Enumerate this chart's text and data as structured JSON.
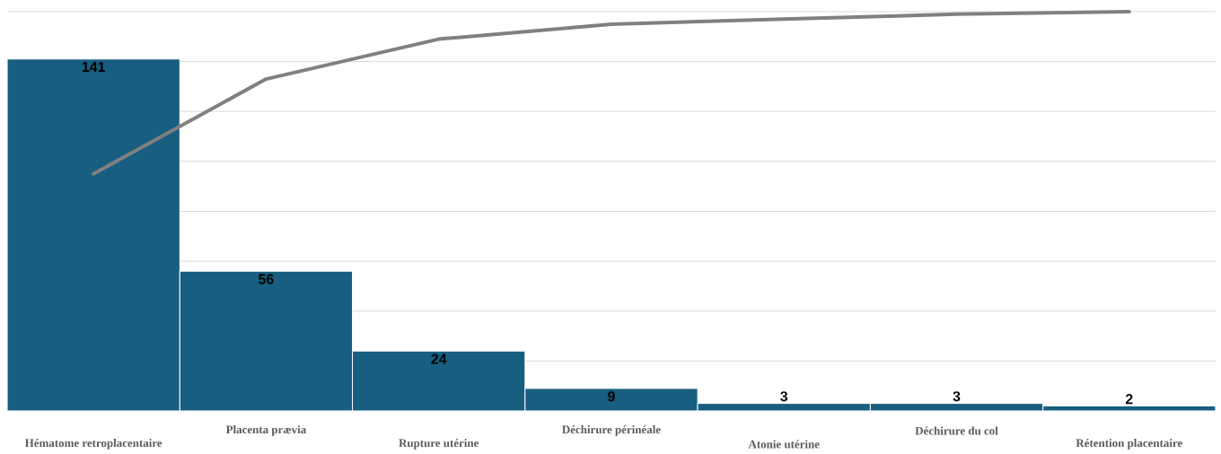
{
  "chart_data": {
    "type": "bar",
    "categories": [
      "Hématome retroplacentaire",
      "Placenta prævia",
      "Rupture utérine",
      "Déchirure périnéale",
      "Atonie utérine",
      "Déchirure du col",
      "Rétention placentaire"
    ],
    "series": [
      {
        "color": "#175e80",
        "values": [
          141,
          56,
          24,
          9,
          3,
          3,
          2
        ],
        "value_labels": [
          "141",
          "56",
          "24",
          "9",
          "3",
          "3",
          "2"
        ]
      },
      {
        "type": "line",
        "color": "#808080",
        "values": [
          95,
          133,
          149,
          155,
          157,
          159,
          160
        ]
      }
    ],
    "ylim": [
      0,
      160
    ],
    "yticks": [
      {
        "value": 0,
        "label": null
      },
      {
        "value": 20,
        "label": null
      },
      {
        "value": 40,
        "label": null
      },
      {
        "value": 60,
        "label": null
      },
      {
        "value": 80,
        "label": null
      },
      {
        "value": 100,
        "label": null
      },
      {
        "value": 120,
        "label": null
      },
      {
        "value": 140,
        "label": null
      },
      {
        "value": 160,
        "label": null
      }
    ],
    "grid": "y",
    "tick_labels": "x"
  }
}
